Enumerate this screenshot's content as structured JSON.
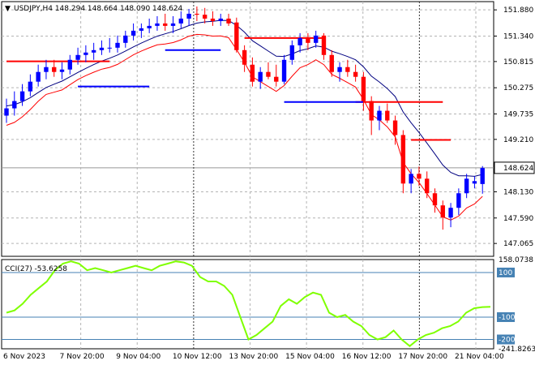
{
  "title": "USDJPY,H4  148.294 148.664 148.090 148.624",
  "price_axis": {
    "ticks": [
      "151.880",
      "151.340",
      "150.815",
      "150.275",
      "149.735",
      "149.210",
      "148.624",
      "148.130",
      "147.590",
      "147.065"
    ],
    "current_price": "148.624"
  },
  "indicator": {
    "label": "CCI(27) -53.6258",
    "axis_ticks": [
      "158.0738",
      "100",
      "-100",
      "-200",
      "-241.8263"
    ]
  },
  "time_axis": {
    "labels": [
      "6 Nov 2023",
      "7 Nov 20:00",
      "9 Nov 04:00",
      "10 Nov 12:00",
      "13 Nov 20:00",
      "15 Nov 04:00",
      "16 Nov 12:00",
      "17 Nov 20:00",
      "21 Nov 04:00"
    ]
  },
  "colors": {
    "bull": "#0000ff",
    "bear": "#ff0000",
    "grid": "#b4b4b4",
    "cci_line": "#7fff00",
    "level_line": "#4682b4",
    "highlight_box": "#4682b4"
  },
  "chart_data": {
    "type": "candlestick",
    "symbol": "USDJPY",
    "timeframe": "H4",
    "ylim": [
      146.8,
      152.05
    ],
    "candles": [
      [
        149.7,
        150.05,
        149.55,
        149.85
      ],
      [
        149.85,
        150.2,
        149.7,
        150.0
      ],
      [
        150.0,
        150.35,
        149.9,
        150.2
      ],
      [
        150.2,
        150.55,
        150.1,
        150.4
      ],
      [
        150.4,
        150.75,
        150.3,
        150.6
      ],
      [
        150.6,
        150.85,
        150.45,
        150.7
      ],
      [
        150.7,
        150.85,
        150.5,
        150.6
      ],
      [
        150.6,
        150.8,
        150.45,
        150.65
      ],
      [
        150.65,
        150.95,
        150.55,
        150.85
      ],
      [
        150.85,
        151.1,
        150.75,
        150.95
      ],
      [
        150.95,
        151.15,
        150.8,
        151.0
      ],
      [
        151.0,
        151.2,
        150.85,
        151.05
      ],
      [
        151.05,
        151.25,
        150.95,
        151.1
      ],
      [
        151.1,
        151.3,
        151.0,
        151.1
      ],
      [
        151.1,
        151.35,
        151.0,
        151.2
      ],
      [
        151.2,
        151.45,
        151.1,
        151.35
      ],
      [
        151.35,
        151.6,
        151.25,
        151.45
      ],
      [
        151.45,
        151.6,
        151.3,
        151.5
      ],
      [
        151.5,
        151.7,
        151.4,
        151.55
      ],
      [
        151.55,
        151.75,
        151.45,
        151.6
      ],
      [
        151.6,
        151.8,
        151.45,
        151.55
      ],
      [
        151.55,
        151.75,
        151.4,
        151.6
      ],
      [
        151.6,
        151.85,
        151.5,
        151.7
      ],
      [
        151.7,
        151.9,
        151.55,
        151.8
      ],
      [
        151.8,
        151.95,
        151.65,
        151.78
      ],
      [
        151.78,
        151.92,
        151.6,
        151.7
      ],
      [
        151.7,
        151.85,
        151.55,
        151.65
      ],
      [
        151.65,
        151.8,
        151.55,
        151.7
      ],
      [
        151.7,
        151.8,
        151.55,
        151.6
      ],
      [
        151.62,
        151.72,
        151.0,
        151.05
      ],
      [
        151.05,
        151.15,
        150.6,
        150.75
      ],
      [
        150.75,
        150.9,
        150.3,
        150.4
      ],
      [
        150.4,
        150.7,
        150.25,
        150.6
      ],
      [
        150.6,
        150.8,
        150.45,
        150.5
      ],
      [
        150.5,
        150.75,
        150.3,
        150.4
      ],
      [
        150.4,
        150.95,
        150.35,
        150.85
      ],
      [
        150.85,
        151.25,
        150.75,
        151.15
      ],
      [
        151.15,
        151.4,
        151.0,
        151.3
      ],
      [
        151.3,
        151.4,
        151.05,
        151.2
      ],
      [
        151.2,
        151.45,
        151.1,
        151.35
      ],
      [
        151.35,
        151.4,
        150.85,
        150.95
      ],
      [
        150.95,
        151.05,
        150.5,
        150.6
      ],
      [
        150.6,
        150.8,
        150.4,
        150.7
      ],
      [
        150.7,
        150.85,
        150.5,
        150.6
      ],
      [
        150.6,
        150.75,
        150.4,
        150.5
      ],
      [
        150.5,
        150.6,
        149.8,
        150.0
      ],
      [
        150.0,
        150.1,
        149.3,
        149.6
      ],
      [
        149.6,
        149.9,
        149.4,
        149.8
      ],
      [
        149.8,
        149.95,
        149.55,
        149.6
      ],
      [
        149.6,
        149.7,
        149.1,
        149.3
      ],
      [
        149.3,
        149.4,
        148.1,
        148.3
      ],
      [
        148.3,
        148.6,
        148.1,
        148.5
      ],
      [
        148.5,
        148.65,
        148.25,
        148.4
      ],
      [
        148.4,
        148.55,
        148.0,
        148.1
      ],
      [
        148.1,
        148.2,
        147.7,
        147.85
      ],
      [
        147.85,
        147.95,
        147.35,
        147.6
      ],
      [
        147.6,
        147.9,
        147.4,
        147.8
      ],
      [
        147.8,
        148.2,
        147.65,
        148.1
      ],
      [
        148.1,
        148.5,
        148.0,
        148.4
      ],
      [
        148.3,
        148.45,
        148.2,
        148.35
      ],
      [
        148.29,
        148.66,
        148.09,
        148.62
      ]
    ],
    "indicator": {
      "name": "CCI(27)",
      "last_value": -53.6258,
      "levels": [
        100,
        -100,
        -200
      ],
      "range": [
        -241.8263,
        158.0738
      ]
    }
  }
}
